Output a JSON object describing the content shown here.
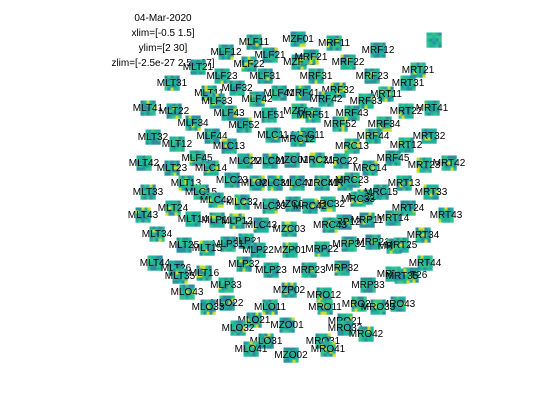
{
  "figure": {
    "date": "04-Mar-2020",
    "xlim": "xlim=[-0.5 1.5]",
    "ylim": "ylim=[2 30]",
    "zlim": "zlim=[-2.5e-27 2.5e-27]"
  },
  "colors": {
    "tile_base": "#1fb59c",
    "tile_dark": "#2e8ea0",
    "tile_light": "#35c38a",
    "tile_hot": "#c9dc2c"
  },
  "chart_data": {
    "type": "heatmap",
    "description_in_units": "topographic multiplot of per-channel time-frequency maps",
    "xlim": [
      -0.5,
      1.5
    ],
    "ylim": [
      2,
      30
    ],
    "zlim": [
      -2.5e-27,
      2.5e-27
    ],
    "channels": [
      "MZF01",
      "MLF11",
      "MRF11",
      "MLF12",
      "MRF12",
      "MLF21",
      "MZF02",
      "MRF21",
      "MLF22",
      "MRF22",
      "MLT21",
      "MLF23",
      "MLF31",
      "MRF31",
      "MRF23",
      "MRT21",
      "MLT31",
      "MLF32",
      "MRF32",
      "MRT31",
      "MLT11",
      "MLF41",
      "MRF41",
      "MRT11",
      "MLF33",
      "MLF42",
      "MRF42",
      "MRF33",
      "MLT41",
      "MLT22",
      "MZF03",
      "MRF43",
      "MRT22",
      "MRT41",
      "MLF43",
      "MLF51",
      "MRF51",
      "MLF34",
      "MLF52",
      "MRF52",
      "MRF34",
      "MLT32",
      "MLF44",
      "MLC11",
      "MRC11",
      "MRF44",
      "MRT32",
      "MLT12",
      "MLC13",
      "MRC12",
      "MRC13",
      "MRT12",
      "MLF45",
      "MRF45",
      "MLT42",
      "MLC14",
      "MLC22",
      "MLC21",
      "MZC01",
      "MRC21",
      "MRC22",
      "MRC14",
      "MRT23",
      "MRT42",
      "MLT23",
      "MLC23",
      "MLC24",
      "MLC31",
      "MLC41",
      "MRC41",
      "MRC31",
      "MRC23",
      "MRT13",
      "MLT13",
      "MRC24",
      "MLT33",
      "MLC15",
      "MRC15",
      "MRT33",
      "MLC32",
      "MZC02",
      "MRC32",
      "MLT24",
      "MLC42",
      "MLC33",
      "MRC42",
      "MRC33",
      "MRT24",
      "MLT43",
      "MLT14",
      "MLP11",
      "MLP12",
      "MRP12",
      "MRP11",
      "MRT14",
      "MRT43",
      "MLC43",
      "MZC03",
      "MRC43",
      "MLT34",
      "MLP21",
      "MLP31",
      "MRP31",
      "MRP21",
      "MRT34",
      "MLT25",
      "MLT15",
      "MLP22",
      "MZP01",
      "MRP22",
      "MRT15",
      "MRT25",
      "MLT44",
      "MLP32",
      "MLP23",
      "MRP23",
      "MRP32",
      "MRT44",
      "MLT26",
      "MLT16",
      "MRT16",
      "MRT26",
      "MLT35",
      "MLP33",
      "MRP33",
      "MRT35",
      "MLO43",
      "MLO22",
      "MZP02",
      "MRO12",
      "MRO22",
      "MRO43",
      "MLO33",
      "MRO33",
      "MLO11",
      "MRO11",
      "MLO21",
      "MRO21",
      "MLO32",
      "MZO01",
      "MRO32",
      "MRO42",
      "MLO31",
      "MRO31",
      "MLO41",
      "MZO02",
      "MRO41"
    ]
  }
}
